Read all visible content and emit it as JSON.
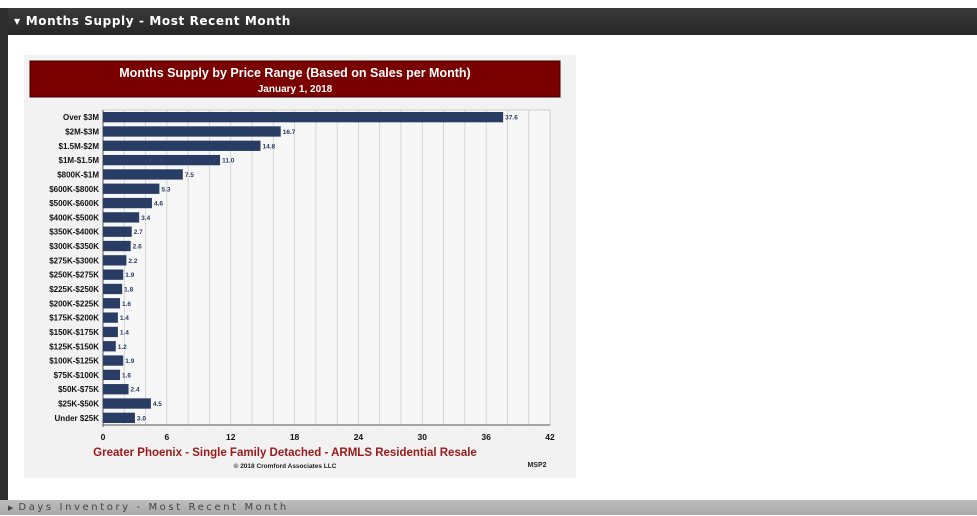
{
  "panel": {
    "title": "Months Supply - Most Recent Month",
    "collapse_icon": "triangle-down-icon"
  },
  "footer_panel": {
    "title": "Days Inventory - Most Recent Month",
    "expand_icon": "triangle-right-icon"
  },
  "colors": {
    "banner": "#7a0000",
    "bar": "#283c64",
    "caption": "#9c1a1a",
    "value_label": "#283c64"
  },
  "chart_data": {
    "type": "bar",
    "orientation": "horizontal",
    "title": "Months Supply by Price Range (Based on Sales per Month)",
    "subtitle": "January 1, 2018",
    "caption": "Greater Phoenix - Single Family Detached - ARMLS Residential Resale",
    "copyright": "© 2018 Cromford Associates LLC",
    "code": "MSP2",
    "categories": [
      "Over $3M",
      "$2M-$3M",
      "$1.5M-$2M",
      "$1M-$1.5M",
      "$800K-$1M",
      "$600K-$800K",
      "$500K-$600K",
      "$400K-$500K",
      "$350K-$400K",
      "$300K-$350K",
      "$275K-$300K",
      "$250K-$275K",
      "$225K-$250K",
      "$200K-$225K",
      "$175K-$200K",
      "$150K-$175K",
      "$125K-$150K",
      "$100K-$125K",
      "$75K-$100K",
      "$50K-$75K",
      "$25K-$50K",
      "Under $25K"
    ],
    "values": [
      37.6,
      16.7,
      14.8,
      11.0,
      7.5,
      5.3,
      4.6,
      3.4,
      2.7,
      2.6,
      2.2,
      1.9,
      1.8,
      1.6,
      1.4,
      1.4,
      1.2,
      1.9,
      1.6,
      2.4,
      4.5,
      3.0
    ],
    "value_labels": [
      "37.6",
      "16.7",
      "14.8",
      "11.0",
      "7.5",
      "5.3",
      "4.6",
      "3.4",
      "2.7",
      "2.6",
      "2.2",
      "1.9",
      "1.8",
      "1.6",
      "1.4",
      "1.4",
      "1.2",
      "1.9",
      "1.6",
      "2.4",
      "4.5",
      "3.0"
    ],
    "xticks": [
      "0",
      "6",
      "12",
      "18",
      "24",
      "30",
      "36",
      "42"
    ],
    "xlim": [
      0,
      42
    ],
    "grid": true,
    "legend": "none"
  }
}
